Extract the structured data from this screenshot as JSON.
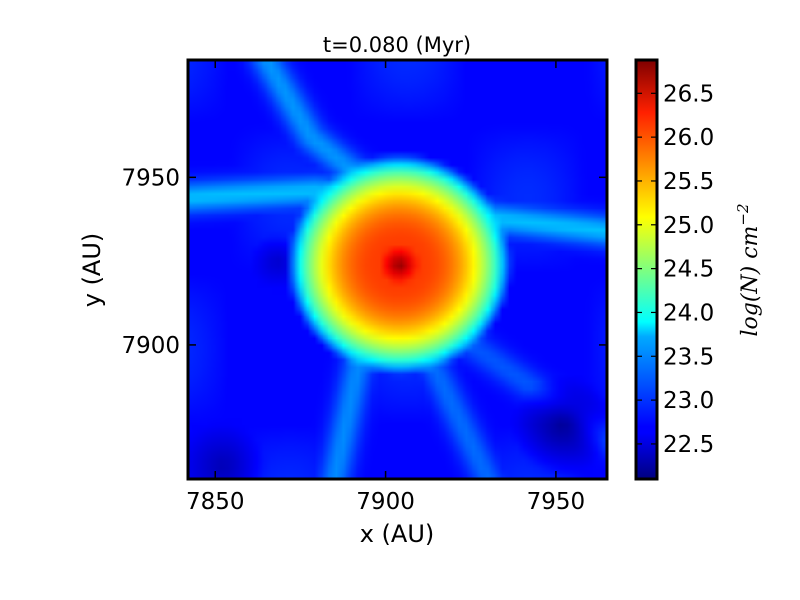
{
  "chart_data": {
    "type": "heatmap",
    "title": "t=0.080 (Myr)",
    "xlabel": "x (AU)",
    "ylabel": "y (AU)",
    "xlim": [
      7842,
      7965
    ],
    "ylim": [
      7860,
      7985
    ],
    "x_ticks": [
      7850,
      7900,
      7950
    ],
    "x_tick_labels": [
      "7850",
      "7900",
      "7950"
    ],
    "y_ticks": [
      7900,
      7950
    ],
    "y_tick_labels": [
      "7900",
      "7950"
    ],
    "colorbar": {
      "label": "log(N) cm",
      "label_exponent": "−2",
      "range": [
        22.1,
        26.88
      ],
      "ticks": [
        22.5,
        23.0,
        23.5,
        24.0,
        24.5,
        25.0,
        25.5,
        26.0,
        26.5
      ],
      "tick_labels": [
        "22.5",
        "23.0",
        "23.5",
        "24.0",
        "24.5",
        "25.0",
        "25.5",
        "26.0",
        "26.5"
      ],
      "colormap": "jet"
    },
    "core": {
      "center_x": 7904,
      "center_y": 7924,
      "radius": 29,
      "peak": 26.85,
      "edge": 24.0
    },
    "background": 22.7,
    "filaments": [
      {
        "name": "",
        "points": [
          [
            7842,
            7944
          ],
          [
            7880,
            7946
          ],
          [
            7912,
            7940
          ],
          [
            7965,
            7934
          ]
        ],
        "value": 23.6
      },
      {
        "name": "",
        "points": [
          [
            7865,
            7985
          ],
          [
            7878,
            7962
          ],
          [
            7895,
            7948
          ]
        ],
        "value": 23.4
      },
      {
        "name": "",
        "points": [
          [
            7893,
            7900
          ],
          [
            7885,
            7860
          ]
        ],
        "value": 23.35
      },
      {
        "name": "",
        "points": [
          [
            7912,
            7898
          ],
          [
            7930,
            7860
          ]
        ],
        "value": 23.2
      },
      {
        "name": "",
        "points": [
          [
            7925,
            7900
          ],
          [
            7965,
            7872
          ]
        ],
        "value": 23.1
      }
    ],
    "voids": [
      {
        "name": "",
        "x": 7952,
        "y": 7876,
        "radius": 15,
        "value": 22.2
      },
      {
        "name": "",
        "x": 7852,
        "y": 7864,
        "radius": 13,
        "value": 22.35
      },
      {
        "name": "",
        "x": 7868,
        "y": 7925,
        "radius": 8,
        "value": 22.45
      }
    ]
  }
}
